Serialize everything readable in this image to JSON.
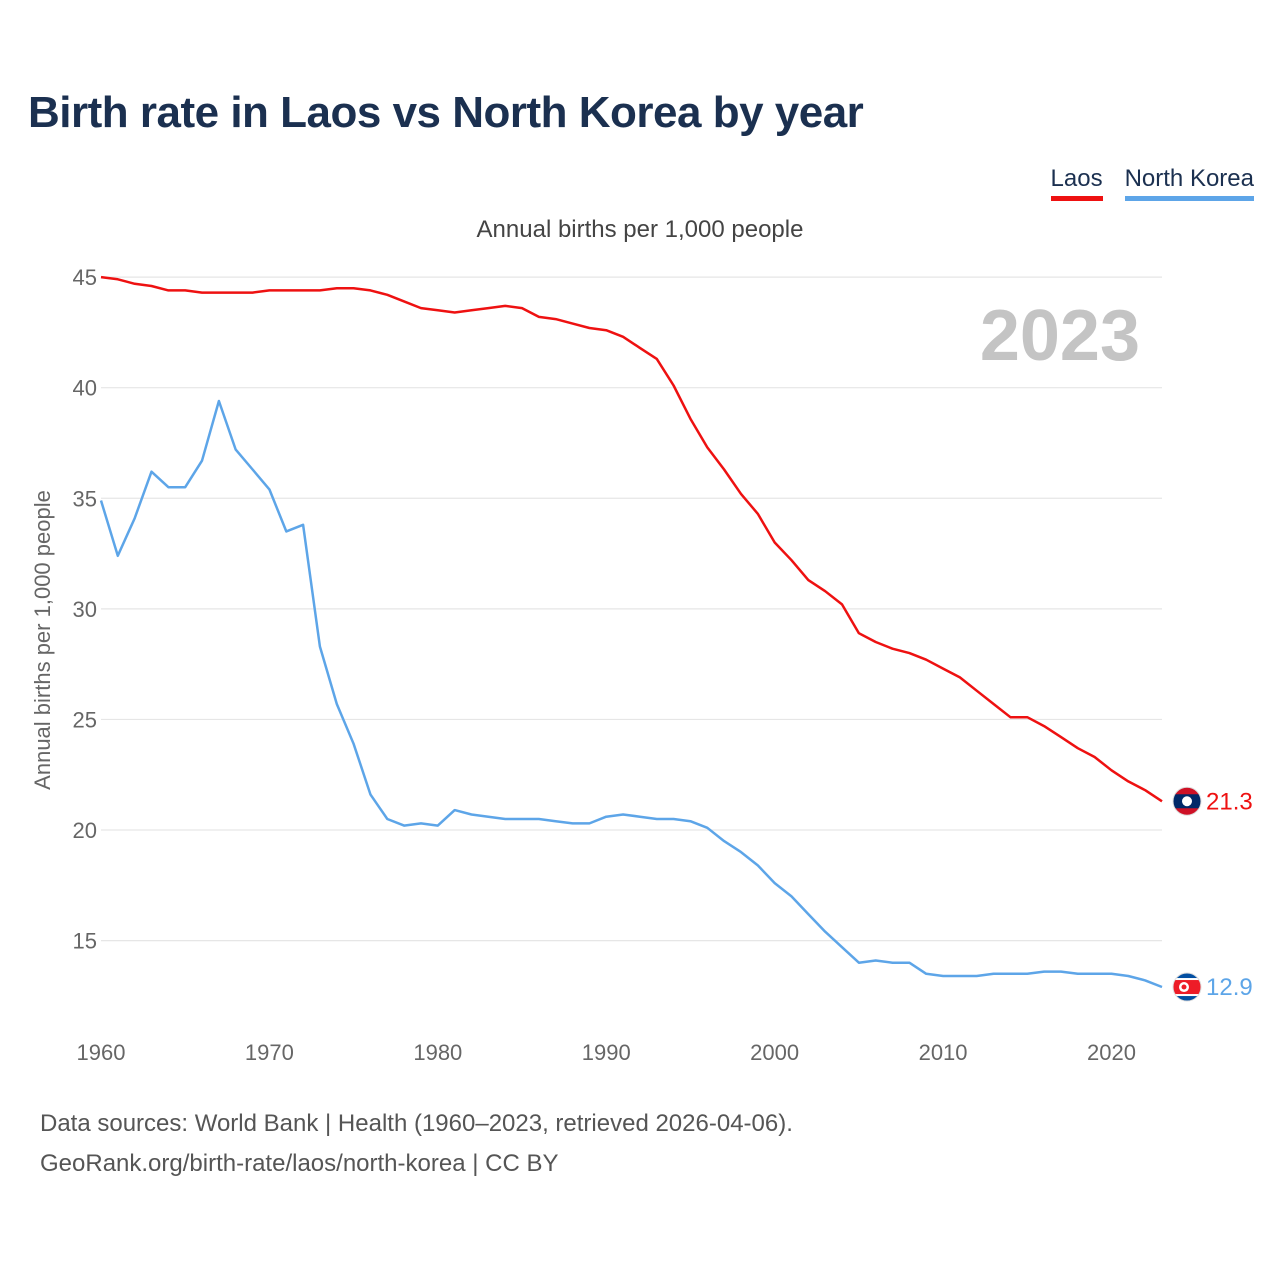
{
  "title": "Birth rate in Laos vs North Korea by year",
  "subtitle": "Annual births per 1,000 people",
  "legend": [
    {
      "name": "Laos",
      "color": "#ee1111"
    },
    {
      "name": "North Korea",
      "color": "#5da5e8"
    }
  ],
  "year_label": "2023",
  "footer": {
    "line1": "Data sources: World Bank | Health (1960–2023, retrieved 2026-04-06).",
    "line2": "GeoRank.org/birth-rate/laos/north-korea | CC BY"
  },
  "chart_data": {
    "type": "line",
    "title": "Birth rate in Laos vs North Korea by year",
    "ylabel": "Annual births per 1,000 people",
    "xlabel": "",
    "xlim": [
      1960,
      2023
    ],
    "ylim": [
      11.5,
      46
    ],
    "xticks": [
      1960,
      1970,
      1980,
      1990,
      2000,
      2010,
      2020
    ],
    "yticks": [
      15,
      20,
      25,
      30,
      35,
      40,
      45
    ],
    "grid": true,
    "x": [
      1960,
      1961,
      1962,
      1963,
      1964,
      1965,
      1966,
      1967,
      1968,
      1969,
      1970,
      1971,
      1972,
      1973,
      1974,
      1975,
      1976,
      1977,
      1978,
      1979,
      1980,
      1981,
      1982,
      1983,
      1984,
      1985,
      1986,
      1987,
      1988,
      1989,
      1990,
      1991,
      1992,
      1993,
      1994,
      1995,
      1996,
      1997,
      1998,
      1999,
      2000,
      2001,
      2002,
      2003,
      2004,
      2005,
      2006,
      2007,
      2008,
      2009,
      2010,
      2011,
      2012,
      2013,
      2014,
      2015,
      2016,
      2017,
      2018,
      2019,
      2020,
      2021,
      2022,
      2023
    ],
    "series": [
      {
        "name": "Laos",
        "color": "#ee1111",
        "end_label": "21.3",
        "values": [
          45.0,
          44.9,
          44.7,
          44.6,
          44.4,
          44.4,
          44.3,
          44.3,
          44.3,
          44.3,
          44.4,
          44.4,
          44.4,
          44.4,
          44.5,
          44.5,
          44.4,
          44.2,
          43.9,
          43.6,
          43.5,
          43.4,
          43.5,
          43.6,
          43.7,
          43.6,
          43.2,
          43.1,
          42.9,
          42.7,
          42.6,
          42.3,
          41.8,
          41.3,
          40.1,
          38.6,
          37.3,
          36.3,
          35.2,
          34.3,
          33.0,
          32.2,
          31.3,
          30.8,
          30.2,
          28.9,
          28.5,
          28.2,
          28.0,
          27.7,
          27.3,
          26.9,
          26.3,
          25.7,
          25.1,
          25.1,
          24.7,
          24.2,
          23.7,
          23.3,
          22.7,
          22.2,
          21.8,
          21.3
        ]
      },
      {
        "name": "North Korea",
        "color": "#5da5e8",
        "end_label": "12.9",
        "values": [
          34.9,
          32.4,
          34.1,
          36.2,
          35.5,
          35.5,
          36.7,
          39.4,
          37.2,
          36.3,
          35.4,
          33.5,
          33.8,
          28.3,
          25.7,
          23.9,
          21.6,
          20.5,
          20.2,
          20.3,
          20.2,
          20.9,
          20.7,
          20.6,
          20.5,
          20.5,
          20.5,
          20.4,
          20.3,
          20.3,
          20.6,
          20.7,
          20.6,
          20.5,
          20.5,
          20.4,
          20.1,
          19.5,
          19.0,
          18.4,
          17.6,
          17.0,
          16.2,
          15.4,
          14.7,
          14.0,
          14.1,
          14.0,
          14.0,
          13.5,
          13.4,
          13.4,
          13.4,
          13.5,
          13.5,
          13.5,
          13.6,
          13.6,
          13.5,
          13.5,
          13.5,
          13.4,
          13.2,
          12.9
        ]
      }
    ]
  }
}
